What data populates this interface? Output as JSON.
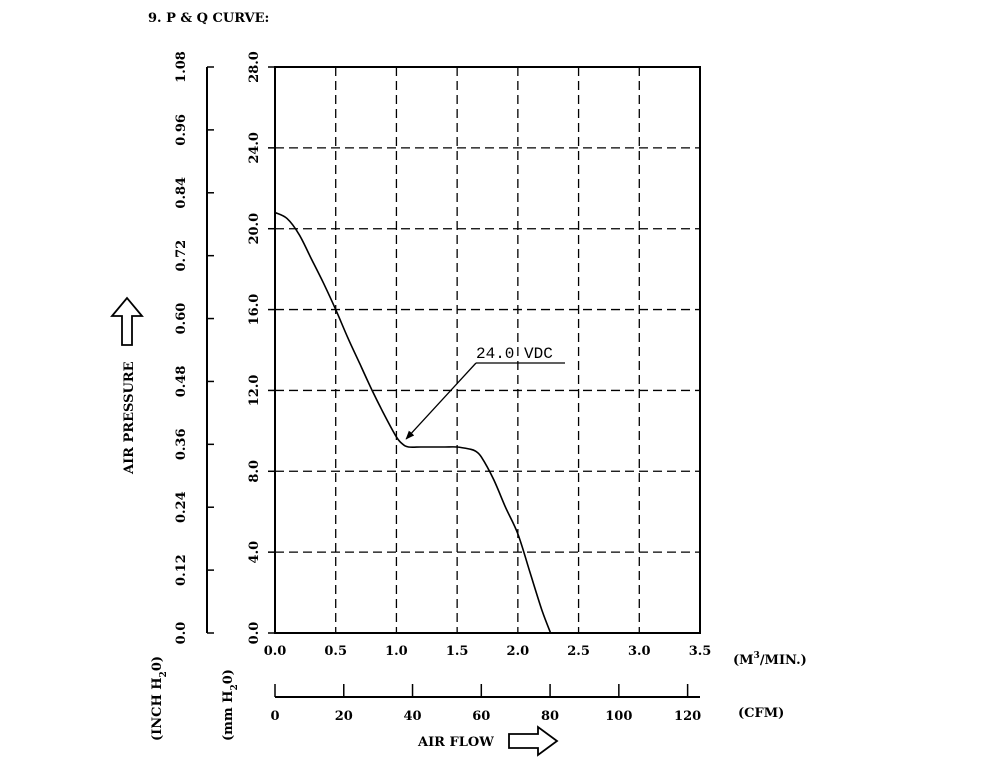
{
  "header": {
    "title": "9. P & Q CURVE:"
  },
  "chart_data": {
    "type": "line",
    "title": "P & Q CURVE",
    "x_axis_cmm": {
      "label_unit": "(M³/MIN.)",
      "unit_base": "(M",
      "unit_sup": "3",
      "unit_tail": "/MIN.)",
      "range": [
        0,
        3.5
      ],
      "ticks": [
        "0.0",
        "0.5",
        "1.0",
        "1.5",
        "2.0",
        "2.5",
        "3.0",
        "3.5"
      ]
    },
    "x_axis_cfm": {
      "unit": "(CFM)",
      "range": [
        0,
        120
      ],
      "ticks": [
        "0",
        "20",
        "40",
        "60",
        "80",
        "100",
        "120"
      ]
    },
    "x_label": "AIR FLOW",
    "y_axis_mm": {
      "unit_text": "(mm H₂0)",
      "unit_a": "(mm H",
      "unit_sub": "2",
      "unit_b": "0)",
      "range": [
        0,
        28
      ],
      "ticks": [
        "0.0",
        "4.0",
        "8.0",
        "12.0",
        "16.0",
        "20.0",
        "24.0",
        "28.0"
      ]
    },
    "y_axis_inch": {
      "unit_text": "(INCH H₂0)",
      "unit_a": "(INCH H",
      "unit_sub": "2",
      "unit_b": "0)",
      "range": [
        0,
        1.08
      ],
      "ticks": [
        "0.0",
        "0.12",
        "0.24",
        "0.36",
        "0.48",
        "0.60",
        "0.72",
        "0.84",
        "0.96",
        "1.08"
      ]
    },
    "y_label": "AIR PRESSURE",
    "grid": "dashed",
    "series": [
      {
        "name": "24.0 VDC",
        "x": [
          0.0,
          0.1,
          0.2,
          0.3,
          0.4,
          0.5,
          0.6,
          0.7,
          0.8,
          0.9,
          1.0,
          1.05,
          1.1,
          1.2,
          1.3,
          1.4,
          1.5,
          1.6,
          1.65,
          1.7,
          1.8,
          1.9,
          2.0,
          2.1,
          2.2,
          2.27
        ],
        "y": [
          20.8,
          20.5,
          19.7,
          18.5,
          17.3,
          16.0,
          14.6,
          13.3,
          12.0,
          10.8,
          9.7,
          9.35,
          9.2,
          9.2,
          9.2,
          9.2,
          9.2,
          9.1,
          9.0,
          8.7,
          7.6,
          6.2,
          4.9,
          3.0,
          1.1,
          0.0
        ]
      }
    ],
    "annotation": {
      "text": "24.0 VDC",
      "target_x": 1.08,
      "target_y": 9.6
    }
  }
}
